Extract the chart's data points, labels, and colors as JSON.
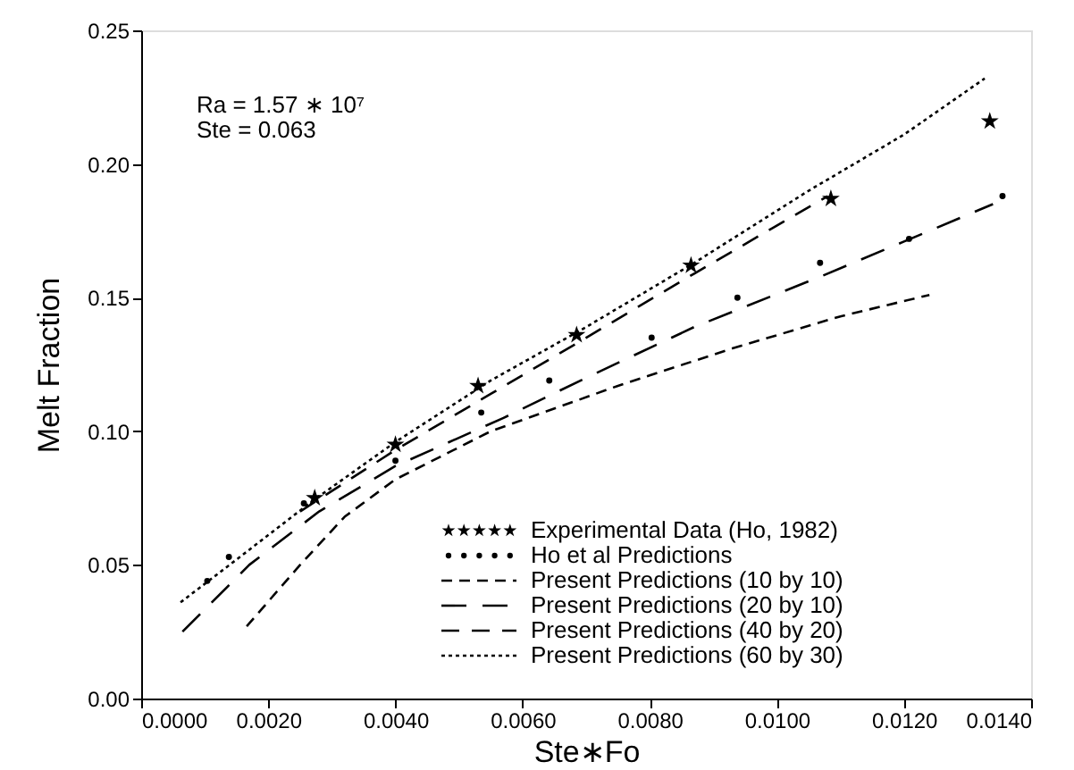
{
  "chart_data": {
    "type": "line",
    "xlabel": "Ste∗Fo",
    "ylabel": "Melt Fraction",
    "annotations": [
      "Ra = 1.57 ∗ 10⁷",
      "Ste = 0.063"
    ],
    "xlim": [
      0,
      0.014
    ],
    "ylim": [
      0,
      0.25
    ],
    "xticks": [
      {
        "value": 0,
        "label": "0.0000"
      },
      {
        "value": 0.002,
        "label": "0.0020"
      },
      {
        "value": 0.004,
        "label": "0.0040"
      },
      {
        "value": 0.006,
        "label": "0.0060"
      },
      {
        "value": 0.008,
        "label": "0.0080"
      },
      {
        "value": 0.01,
        "label": "0.0100"
      },
      {
        "value": 0.012,
        "label": "0.0120"
      },
      {
        "value": 0.014,
        "label": "0.0140"
      }
    ],
    "yticks": [
      {
        "value": 0,
        "label": "0.00"
      },
      {
        "value": 0.05,
        "label": "0.05"
      },
      {
        "value": 0.1,
        "label": "0.10"
      },
      {
        "value": 0.15,
        "label": "0.15"
      },
      {
        "value": 0.2,
        "label": "0.20"
      },
      {
        "value": 0.25,
        "label": "0.25"
      }
    ],
    "grid": false,
    "legend": "bottom right",
    "series": [
      {
        "name": "Experimental Data (Ho, 1982)",
        "type": "scatter",
        "marker": "star",
        "color": "#000000",
        "x": [
          0.00273,
          0.004,
          0.0053,
          0.00685,
          0.00865,
          0.01085,
          0.01335
        ],
        "values": [
          0.075,
          0.095,
          0.117,
          0.136,
          0.162,
          0.187,
          0.216
        ]
      },
      {
        "name": "Ho et al Predictions",
        "type": "scatter",
        "marker": "circle",
        "color": "#000000",
        "x": [
          0.00104,
          0.00138,
          0.00256,
          0.004,
          0.00535,
          0.00642,
          0.00803,
          0.00938,
          0.01068,
          0.01208,
          0.01355
        ],
        "values": [
          0.044,
          0.053,
          0.073,
          0.089,
          0.107,
          0.119,
          0.135,
          0.15,
          0.163,
          0.172,
          0.188
        ]
      },
      {
        "name": "Present Predictions (10 by 10)",
        "line_style": "dashed",
        "color": "#000000",
        "x": [
          0.00166,
          0.0025,
          0.0032,
          0.004,
          0.0055,
          0.0075,
          0.0093,
          0.011,
          0.0124
        ],
        "values": [
          0.027,
          0.05,
          0.068,
          0.082,
          0.1,
          0.117,
          0.131,
          0.143,
          0.151
        ]
      },
      {
        "name": "Present Predictions (20 by 10)",
        "line_style": "dashed",
        "color": "#000000",
        "x": [
          0.00065,
          0.0017,
          0.0028,
          0.004,
          0.0057,
          0.007,
          0.0087,
          0.0107,
          0.012,
          0.0134
        ],
        "values": [
          0.025,
          0.05,
          0.07,
          0.087,
          0.105,
          0.12,
          0.139,
          0.158,
          0.171,
          0.185
        ]
      },
      {
        "name": "Present Predictions (40 by 20)",
        "line_style": "dashed",
        "color": "#000000",
        "x": [
          0.0025,
          0.004,
          0.0055,
          0.007,
          0.0087,
          0.0108
        ],
        "values": [
          0.07,
          0.093,
          0.114,
          0.135,
          0.159,
          0.188
        ]
      },
      {
        "name": "Present Predictions (60 by 30)",
        "line_style": "dotted",
        "color": "#000000",
        "x": [
          0.00062,
          0.0015,
          0.0027,
          0.004,
          0.0055,
          0.007,
          0.0087,
          0.0105,
          0.012,
          0.01327
        ],
        "values": [
          0.036,
          0.052,
          0.074,
          0.096,
          0.119,
          0.139,
          0.163,
          0.19,
          0.211,
          0.232
        ]
      }
    ]
  }
}
